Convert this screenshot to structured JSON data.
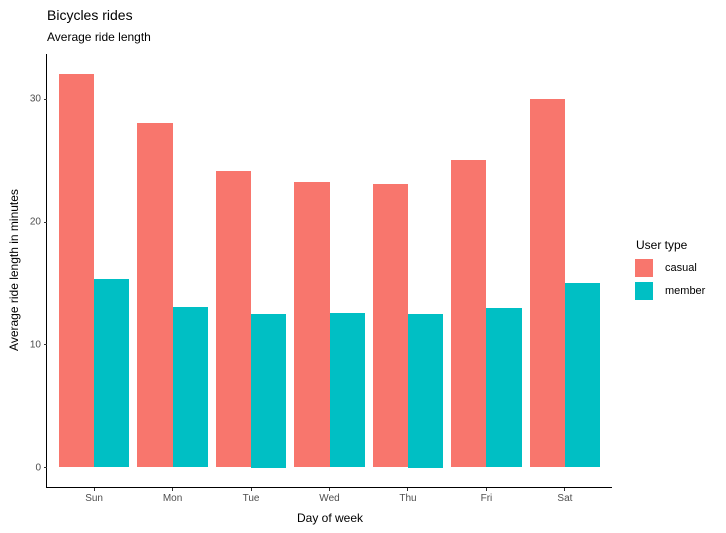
{
  "title": "Bicycles rides",
  "subtitle": "Average ride length",
  "chart_data": {
    "type": "bar",
    "categories": [
      "Sun",
      "Mon",
      "Tue",
      "Wed",
      "Thu",
      "Fri",
      "Sat"
    ],
    "series": [
      {
        "name": "casual",
        "color": "#F8766D",
        "values": [
          32.1,
          28.1,
          24.2,
          23.3,
          23.1,
          25.1,
          30.0
        ]
      },
      {
        "name": "member",
        "color": "#00BFC4",
        "values": [
          15.4,
          13.1,
          12.5,
          12.6,
          12.5,
          13.0,
          15.0
        ]
      }
    ],
    "title": "Bicycles rides",
    "subtitle": "Average ride length",
    "xlabel": "Day of week",
    "ylabel": "Average ride length in minutes",
    "yticks": [
      0,
      10,
      20,
      30
    ],
    "ylim": [
      0,
      32.1
    ],
    "grid": false,
    "background": "#ffffff",
    "axis_line_color": "#000000",
    "tick_label_color": "#4d4d4d",
    "legend": {
      "title": "User type",
      "position": "right"
    }
  }
}
